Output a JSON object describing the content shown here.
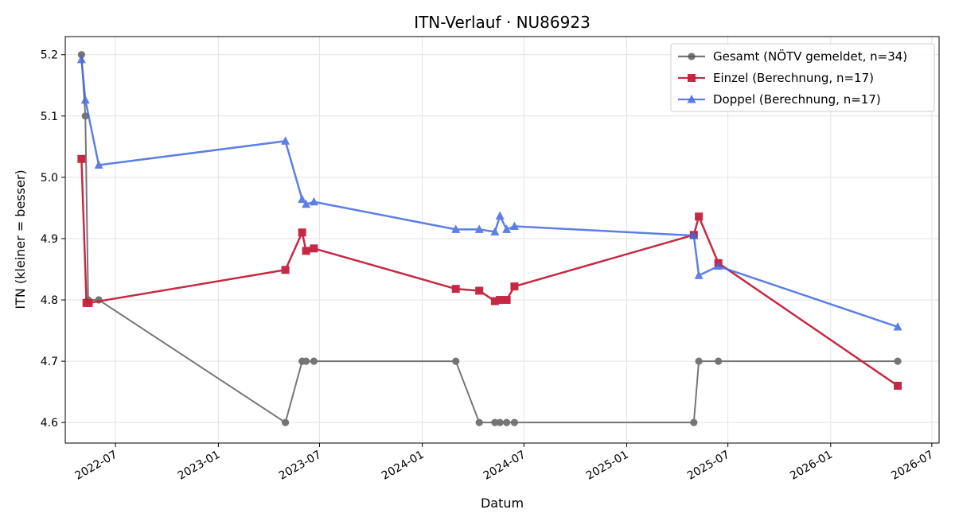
{
  "chart_data": {
    "type": "line",
    "title": "ITN-Verlauf · NU86923",
    "xlabel": "Datum",
    "ylabel": "ITN  (kleiner = besser)",
    "xlim": [
      "2022-04-02",
      "2026-07-14"
    ],
    "ylim": [
      4.5665,
      5.2295
    ],
    "x_ticks": [
      "2022-07",
      "2023-01",
      "2023-07",
      "2024-01",
      "2024-07",
      "2025-01",
      "2025-07",
      "2026-01",
      "2026-07"
    ],
    "y_ticks": [
      "4.6",
      "4.7",
      "4.8",
      "4.9",
      "5.0",
      "5.1",
      "5.2"
    ],
    "grid": true,
    "legend_position": "top-right",
    "series": [
      {
        "name": "Gesamt (NÖTV gemeldet, n=34)",
        "color": "#555555",
        "marker": "circle",
        "points": [
          [
            "2022-05-01",
            5.2
          ],
          [
            "2022-05-08",
            5.1
          ],
          [
            "2022-05-13",
            4.8
          ],
          [
            "2022-06-01",
            4.8
          ],
          [
            "2023-05-01",
            4.6
          ],
          [
            "2023-05-31",
            4.7
          ],
          [
            "2023-06-07",
            4.7
          ],
          [
            "2023-06-21",
            4.7
          ],
          [
            "2024-03-01",
            4.7
          ],
          [
            "2024-04-12",
            4.6
          ],
          [
            "2024-05-10",
            4.6
          ],
          [
            "2024-05-19",
            4.6
          ],
          [
            "2024-05-31",
            4.6
          ],
          [
            "2024-06-14",
            4.6
          ],
          [
            "2025-05-01",
            4.6
          ],
          [
            "2025-05-10",
            4.7
          ],
          [
            "2025-06-14",
            4.7
          ],
          [
            "2026-05-01",
            4.7
          ]
        ]
      },
      {
        "name": "Einzel (Berechnung, n=17)",
        "color": "#c41e3a",
        "marker": "square",
        "points": [
          [
            "2022-05-01",
            5.03
          ],
          [
            "2022-05-10",
            4.795
          ],
          [
            "2022-05-14",
            4.795
          ],
          [
            "2023-05-01",
            4.849
          ],
          [
            "2023-05-31",
            4.91
          ],
          [
            "2023-06-07",
            4.88
          ],
          [
            "2023-06-21",
            4.884
          ],
          [
            "2024-03-01",
            4.818
          ],
          [
            "2024-04-12",
            4.815
          ],
          [
            "2024-05-10",
            4.798
          ],
          [
            "2024-05-19",
            4.8
          ],
          [
            "2024-05-31",
            4.8
          ],
          [
            "2024-06-14",
            4.822
          ],
          [
            "2025-05-01",
            4.906
          ],
          [
            "2025-05-10",
            4.936
          ],
          [
            "2025-06-14",
            4.86
          ],
          [
            "2026-05-01",
            4.66
          ]
        ]
      },
      {
        "name": "Doppel (Berechnung, n=17)",
        "color": "#4169e1",
        "marker": "triangle",
        "points": [
          [
            "2022-05-01",
            5.192
          ],
          [
            "2022-05-08",
            5.126
          ],
          [
            "2022-06-01",
            5.02
          ],
          [
            "2023-05-01",
            5.059
          ],
          [
            "2023-05-31",
            4.964
          ],
          [
            "2023-06-07",
            4.956
          ],
          [
            "2023-06-21",
            4.96
          ],
          [
            "2024-03-01",
            4.915
          ],
          [
            "2024-04-12",
            4.915
          ],
          [
            "2024-05-10",
            4.911
          ],
          [
            "2024-05-19",
            4.937
          ],
          [
            "2024-05-31",
            4.915
          ],
          [
            "2024-06-14",
            4.92
          ],
          [
            "2025-05-01",
            4.905
          ],
          [
            "2025-05-10",
            4.84
          ],
          [
            "2025-06-14",
            4.855
          ],
          [
            "2026-05-01",
            4.756
          ]
        ]
      }
    ]
  }
}
